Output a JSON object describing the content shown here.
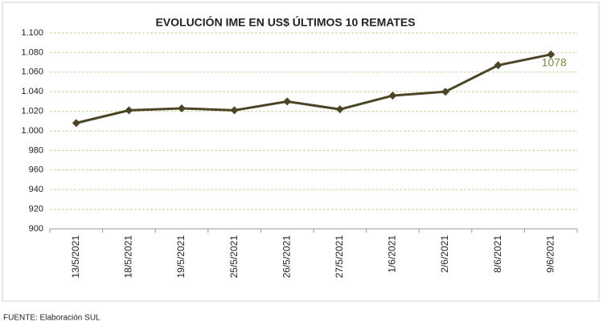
{
  "chart_data": {
    "type": "line",
    "title": "EVOLUCIÓN IME EN US$ ÚLTIMOS 10 REMATES",
    "categories": [
      "13/5/2021",
      "18/5/2021",
      "19/5/2021",
      "25/5/2021",
      "26/5/2021",
      "27/5/2021",
      "1/6/2021",
      "2/6/2021",
      "8/6/2021",
      "9/6/2021"
    ],
    "values": [
      1008,
      1021,
      1023,
      1021,
      1030,
      1022,
      1036,
      1040,
      1067,
      1078
    ],
    "color": "#4b4526",
    "label_color": "#76923c",
    "grid": true,
    "ylim": [
      900,
      1100
    ],
    "yticks": [
      900,
      920,
      940,
      960,
      980,
      {
        "value": 1000,
        "label": "1.000"
      },
      {
        "value": 1020,
        "label": "1.020"
      },
      {
        "value": 1040,
        "label": "1.040"
      },
      {
        "value": 1060,
        "label": "1.060"
      },
      {
        "value": 1080,
        "label": "1.080"
      },
      {
        "value": 1100,
        "label": "1.100"
      }
    ]
  },
  "source": "FUENTE: Elaboración SUL"
}
